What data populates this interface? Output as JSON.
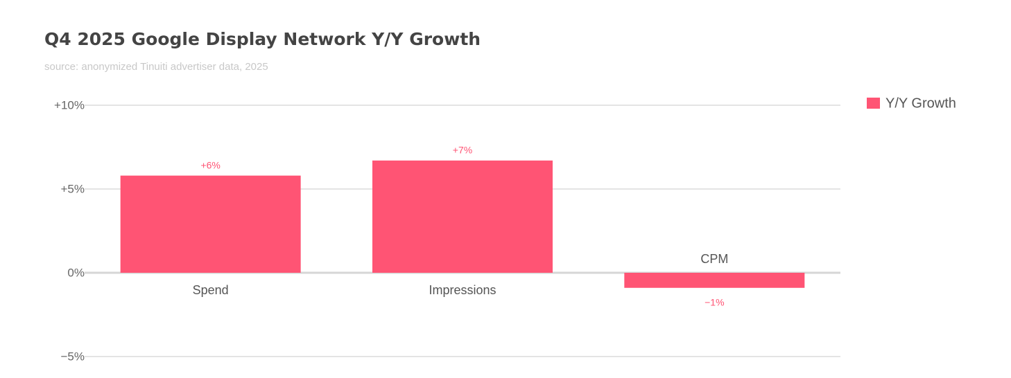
{
  "chart_data": {
    "type": "bar",
    "title": "Q4 2025 Google Display Network Y/Y Growth",
    "subtitle": "source: anonymized Tinuiti advertiser data, 2025",
    "categories": [
      "Spend",
      "Impressions",
      "CPM"
    ],
    "series": [
      {
        "name": "Y/Y Growth",
        "color": "#ff5474",
        "values": [
          5.8,
          6.7,
          -0.9
        ],
        "value_labels": [
          "+6%",
          "+7%",
          "−1%"
        ]
      }
    ],
    "ylim": [
      -5,
      10
    ],
    "yticks": [
      {
        "value": -5,
        "label": "−5%"
      },
      {
        "value": 0,
        "label": "0%"
      },
      {
        "value": 5,
        "label": "+5%"
      },
      {
        "value": 10,
        "label": "+10%"
      }
    ],
    "grid": true,
    "legend": "top-right"
  }
}
